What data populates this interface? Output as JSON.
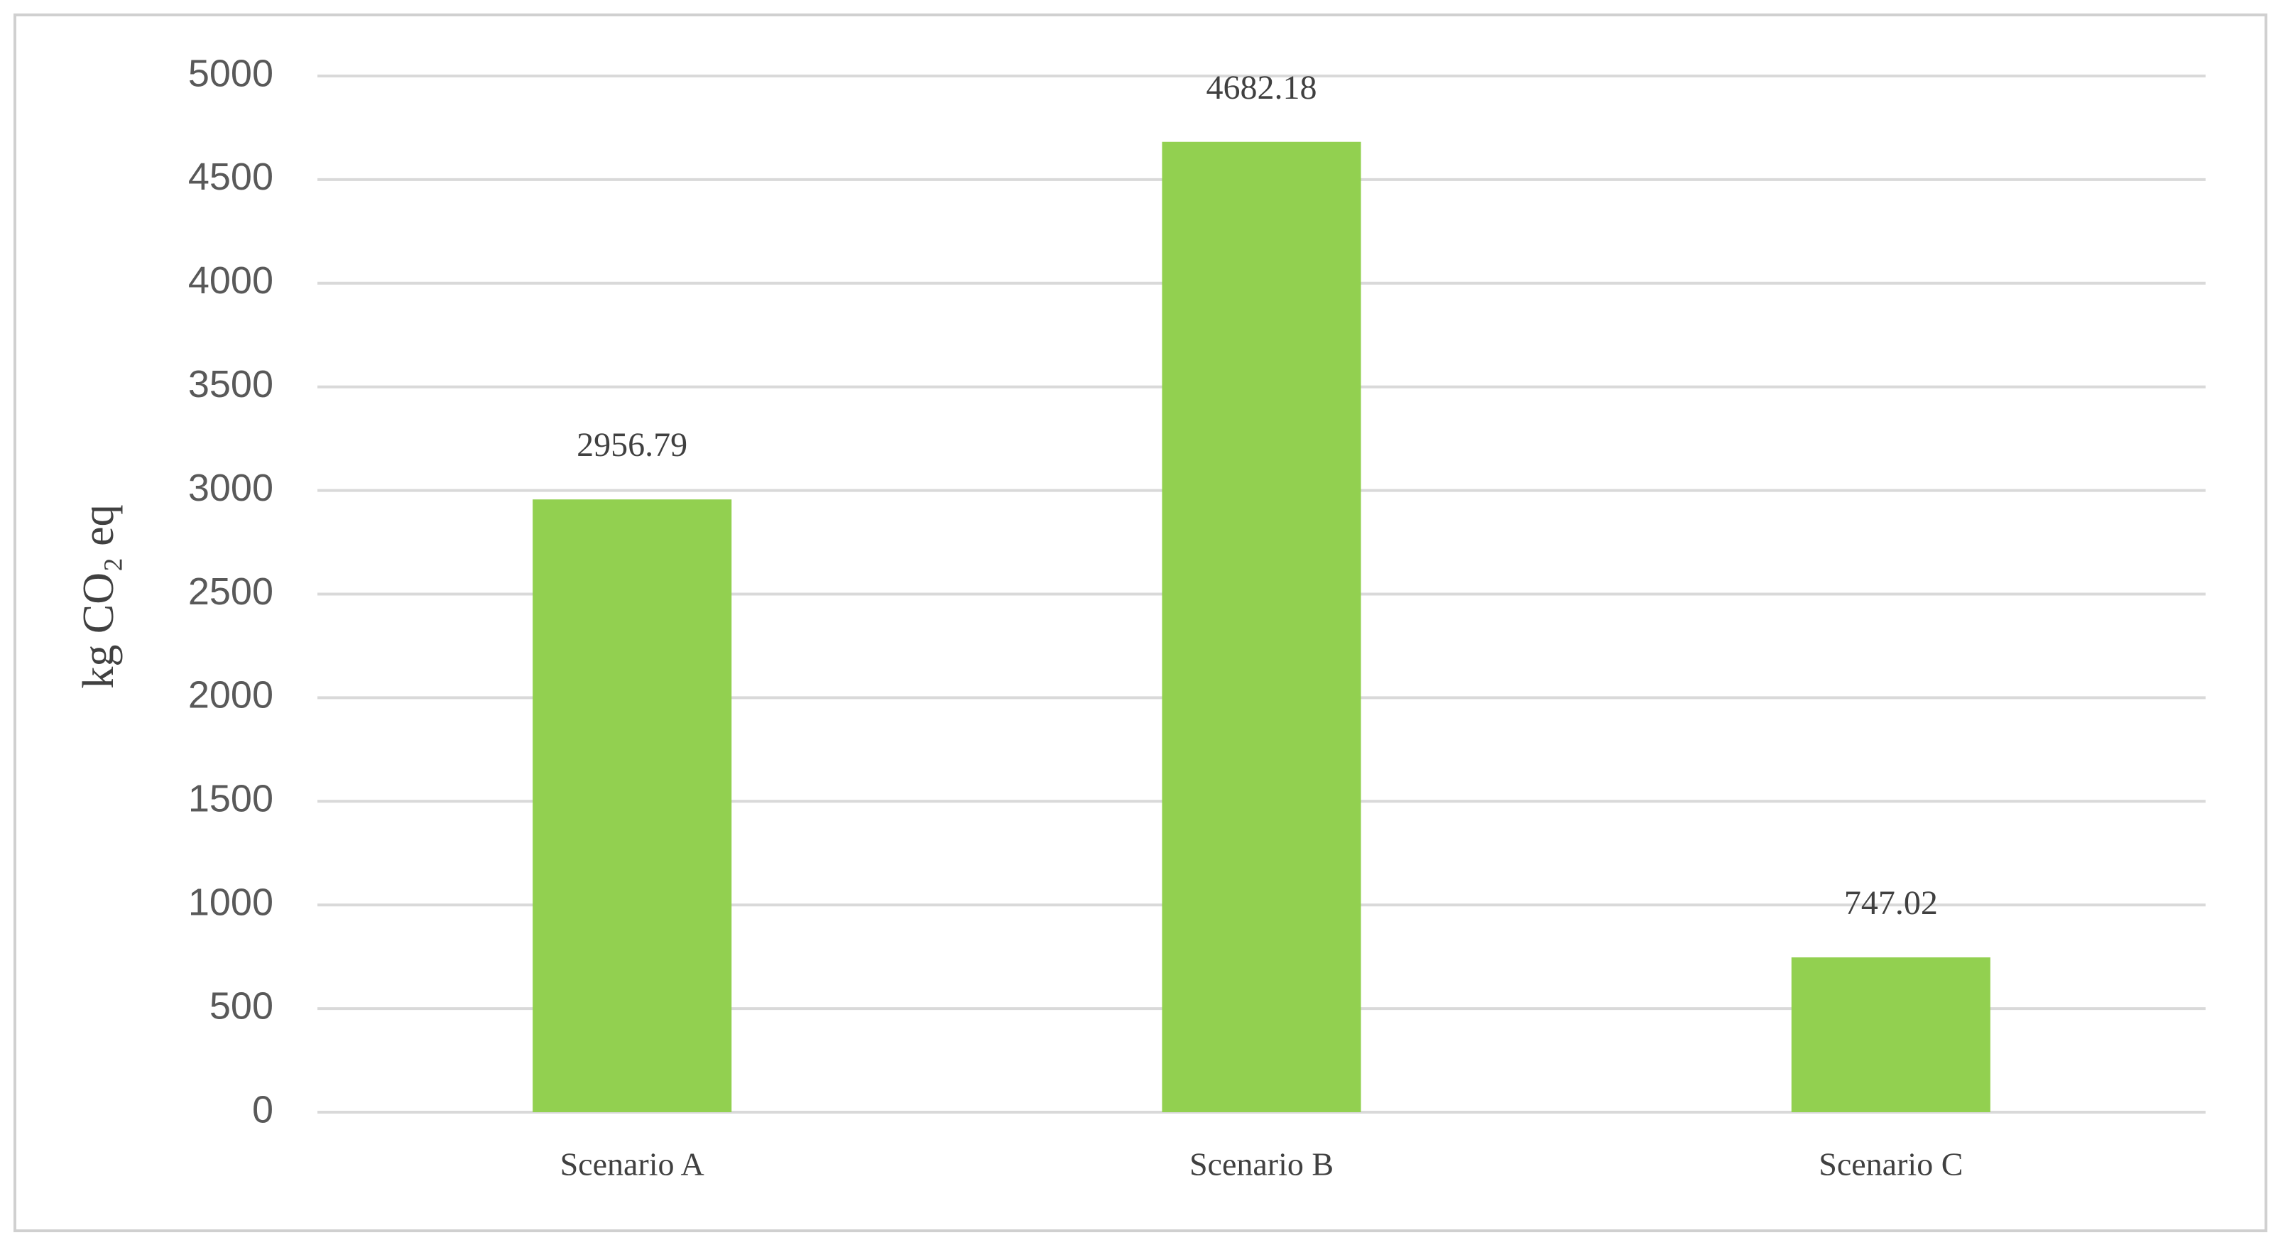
{
  "chart_data": {
    "type": "bar",
    "y_label": "kg CO₂ eq",
    "categories": [
      "Scenario A",
      "Scenario B",
      "Scenario C"
    ],
    "values": [
      2956.79,
      4682.18,
      747.02
    ],
    "color": "#92d050",
    "ylim": [
      0,
      5000
    ],
    "yticks": [
      0,
      500,
      1000,
      1500,
      2000,
      2500,
      3000,
      3500,
      4000,
      4500,
      5000
    ],
    "grid": true
  }
}
